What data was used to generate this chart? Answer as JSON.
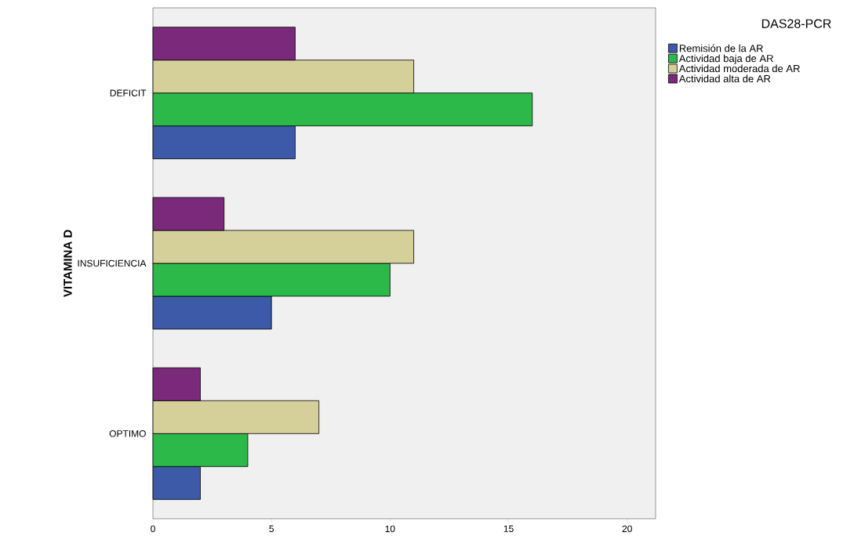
{
  "chart_data": {
    "type": "bar",
    "orientation": "horizontal",
    "ylabel": "VITAMINA D",
    "legend_title": "DAS28-PCR",
    "categories": [
      "DEFICIT",
      "INSUFICIENCIA",
      "OPTIMO"
    ],
    "series": [
      {
        "name": "Remisión de la AR",
        "color": "#3c5aa8",
        "values": [
          6,
          5,
          2
        ]
      },
      {
        "name": "Actividad baja de AR",
        "color": "#2db84a",
        "values": [
          16,
          10,
          4
        ]
      },
      {
        "name": "Actividad moderada de AR",
        "color": "#d5cf9a",
        "values": [
          11,
          11,
          7
        ]
      },
      {
        "name": "Actividad alta de AR",
        "color": "#7b2a7b",
        "values": [
          6,
          3,
          2
        ]
      }
    ],
    "xlim": [
      0,
      21.2
    ],
    "xticks": [
      0,
      5,
      10,
      15,
      20
    ],
    "grid": false,
    "legend": "top right"
  }
}
